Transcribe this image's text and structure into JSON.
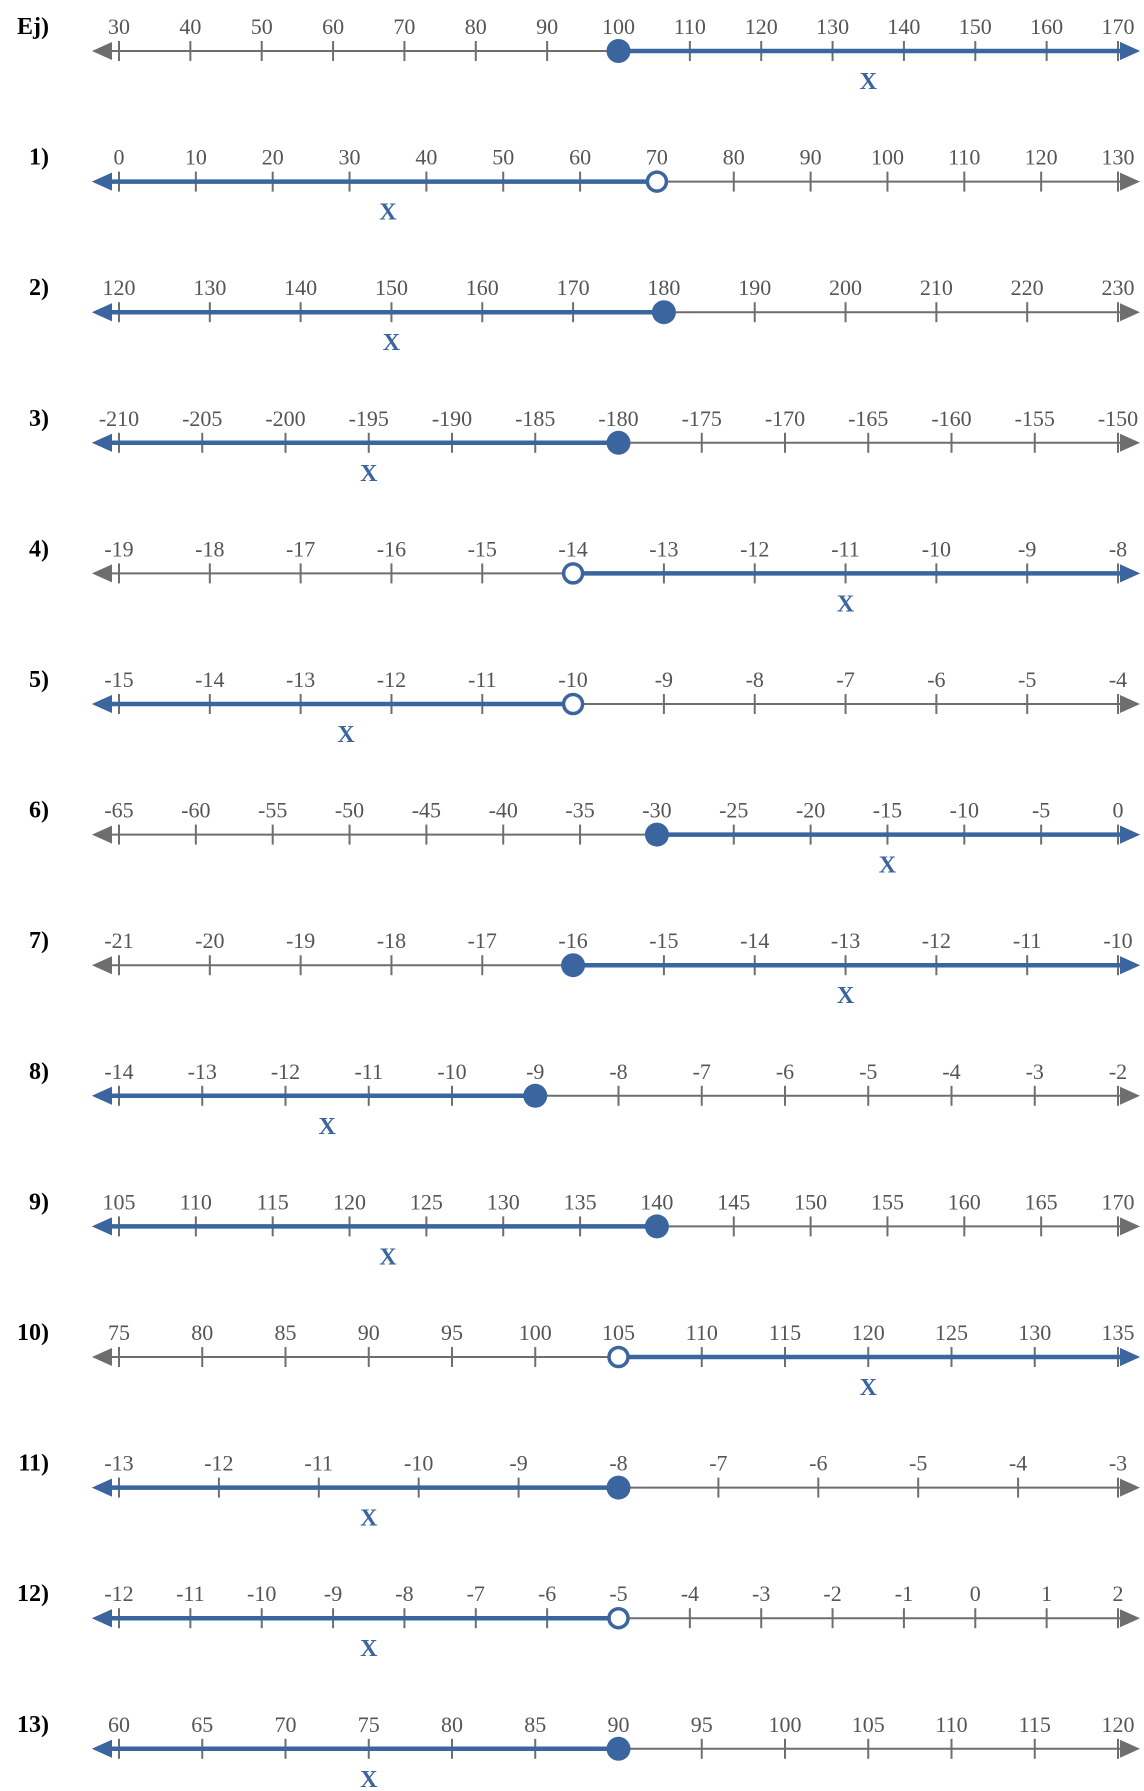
{
  "colors": {
    "solution": "#3a659f",
    "axis": "#6e6e6e",
    "label": "#000000"
  },
  "chart_data": [
    {
      "type": "number-line",
      "label": "Ej)",
      "ticks": [
        30,
        40,
        50,
        60,
        70,
        80,
        90,
        100,
        110,
        120,
        130,
        140,
        150,
        160,
        170
      ],
      "point": 100,
      "closed": true,
      "direction": "right",
      "x_label": "X",
      "x_value": 135
    },
    {
      "type": "number-line",
      "label": "1)",
      "ticks": [
        0,
        10,
        20,
        30,
        40,
        50,
        60,
        70,
        80,
        90,
        100,
        110,
        120,
        130
      ],
      "point": 70,
      "closed": false,
      "direction": "left",
      "x_label": "X",
      "x_value": 35
    },
    {
      "type": "number-line",
      "label": "2)",
      "ticks": [
        120,
        130,
        140,
        150,
        160,
        170,
        180,
        190,
        200,
        210,
        220,
        230
      ],
      "point": 180,
      "closed": true,
      "direction": "left",
      "x_label": "X",
      "x_value": 150
    },
    {
      "type": "number-line",
      "label": "3)",
      "ticks": [
        -210,
        -205,
        -200,
        -195,
        -190,
        -185,
        -180,
        -175,
        -170,
        -165,
        -160,
        -155,
        -150
      ],
      "point": -180,
      "closed": true,
      "direction": "left",
      "x_label": "X",
      "x_value": -195
    },
    {
      "type": "number-line",
      "label": "4)",
      "ticks": [
        -19,
        -18,
        -17,
        -16,
        -15,
        -14,
        -13,
        -12,
        -11,
        -10,
        -9,
        -8
      ],
      "point": -14,
      "closed": false,
      "direction": "right",
      "x_label": "X",
      "x_value": -11
    },
    {
      "type": "number-line",
      "label": "5)",
      "ticks": [
        -15,
        -14,
        -13,
        -12,
        -11,
        -10,
        -9,
        -8,
        -7,
        -6,
        -5,
        -4
      ],
      "point": -10,
      "closed": false,
      "direction": "left",
      "x_label": "X",
      "x_value": -12.5
    },
    {
      "type": "number-line",
      "label": "6)",
      "ticks": [
        -65,
        -60,
        -55,
        -50,
        -45,
        -40,
        -35,
        -30,
        -25,
        -20,
        -15,
        -10,
        -5,
        0
      ],
      "point": -30,
      "closed": true,
      "direction": "right",
      "x_label": "X",
      "x_value": -15
    },
    {
      "type": "number-line",
      "label": "7)",
      "ticks": [
        -21,
        -20,
        -19,
        -18,
        -17,
        -16,
        -15,
        -14,
        -13,
        -12,
        -11,
        -10
      ],
      "point": -16,
      "closed": true,
      "direction": "right",
      "x_label": "X",
      "x_value": -13
    },
    {
      "type": "number-line",
      "label": "8)",
      "ticks": [
        -14,
        -13,
        -12,
        -11,
        -10,
        -9,
        -8,
        -7,
        -6,
        -5,
        -4,
        -3,
        -2
      ],
      "point": -9,
      "closed": true,
      "direction": "left",
      "x_label": "X",
      "x_value": -11.5
    },
    {
      "type": "number-line",
      "label": "9)",
      "ticks": [
        105,
        110,
        115,
        120,
        125,
        130,
        135,
        140,
        145,
        150,
        155,
        160,
        165,
        170
      ],
      "point": 140,
      "closed": true,
      "direction": "left",
      "x_label": "X",
      "x_value": 122.5
    },
    {
      "type": "number-line",
      "label": "10)",
      "ticks": [
        75,
        80,
        85,
        90,
        95,
        100,
        105,
        110,
        115,
        120,
        125,
        130,
        135
      ],
      "point": 105,
      "closed": false,
      "direction": "right",
      "x_label": "X",
      "x_value": 120
    },
    {
      "type": "number-line",
      "label": "11)",
      "ticks": [
        -13,
        -12,
        -11,
        -10,
        -9,
        -8,
        -7,
        -6,
        -5,
        -4,
        -3
      ],
      "point": -8,
      "closed": true,
      "direction": "left",
      "x_label": "X",
      "x_value": -10.5
    },
    {
      "type": "number-line",
      "label": "12)",
      "ticks": [
        -12,
        -11,
        -10,
        -9,
        -8,
        -7,
        -6,
        -5,
        -4,
        -3,
        -2,
        -1,
        0,
        1,
        2
      ],
      "point": -5,
      "closed": false,
      "direction": "left",
      "x_label": "X",
      "x_value": -8.5
    },
    {
      "type": "number-line",
      "label": "13)",
      "ticks": [
        60,
        65,
        70,
        75,
        80,
        85,
        90,
        95,
        100,
        105,
        110,
        115,
        120
      ],
      "point": 90,
      "closed": true,
      "direction": "left",
      "x_label": "X",
      "x_value": 75
    }
  ]
}
